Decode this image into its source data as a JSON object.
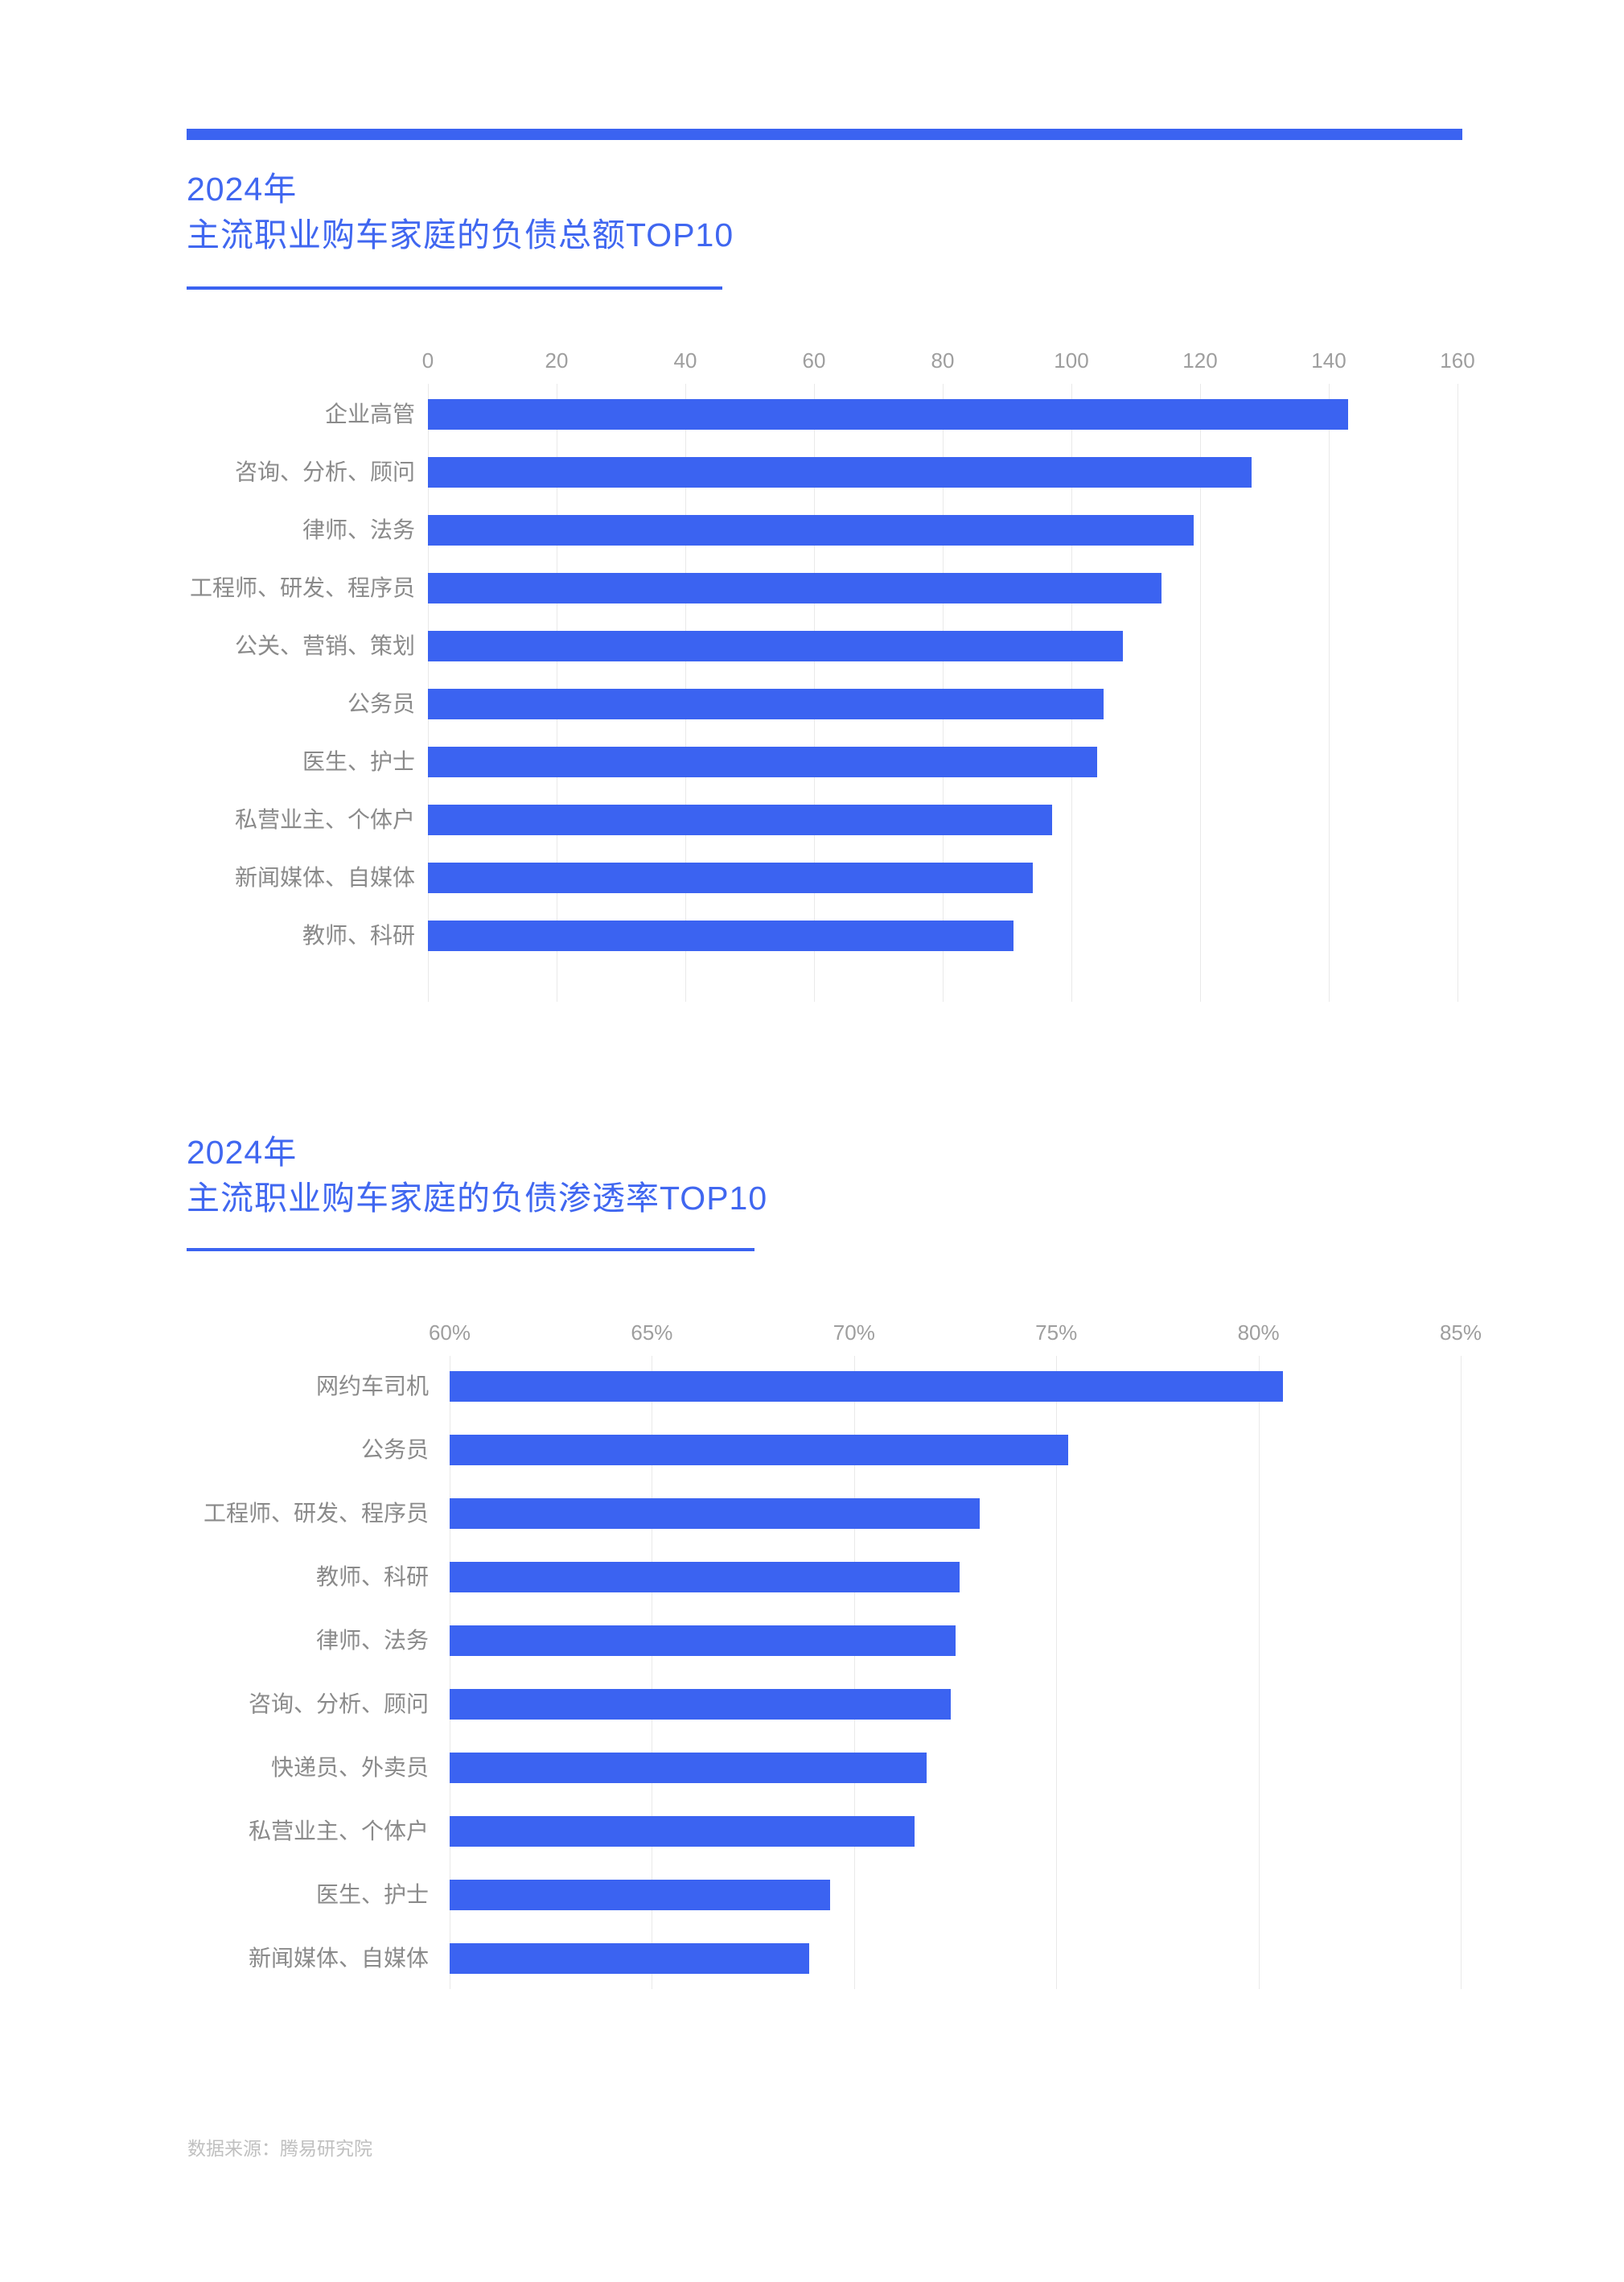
{
  "colors": {
    "accent": "#3b63f1",
    "title_text": "#4067f0",
    "axis_label": "#9e9e9e",
    "category_label": "#8a8a8a",
    "gridline": "#e9e9e9",
    "footer_text": "#c0c0c0",
    "background": "#ffffff"
  },
  "chart_data": [
    {
      "type": "bar",
      "orientation": "horizontal",
      "title_line1": "2024年",
      "title_line2": "主流职业购车家庭的负债总额TOP10",
      "categories": [
        "企业高管",
        "咨询、分析、顾问",
        "律师、法务",
        "工程师、研发、程序员",
        "公关、营销、策划",
        "公务员",
        "医生、护士",
        "私营业主、个体户",
        "新闻媒体、自媒体",
        "教师、科研"
      ],
      "values": [
        143,
        128,
        119,
        114,
        108,
        105,
        104,
        97,
        94,
        91
      ],
      "xlim": [
        0,
        160
      ],
      "ticks": [
        "0",
        "20",
        "40",
        "60",
        "80",
        "100",
        "120",
        "140",
        "160"
      ],
      "grid": true,
      "legend": "none",
      "bar_color": "#3b63f1"
    },
    {
      "type": "bar",
      "orientation": "horizontal",
      "title_line1": "2024年",
      "title_line2": "主流职业购车家庭的负债渗透率TOP10",
      "categories": [
        "网约车司机",
        "公务员",
        "工程师、研发、程序员",
        "教师、科研",
        "律师、法务",
        "咨询、分析、顾问",
        "快递员、外卖员",
        "私营业主、个体户",
        "医生、护士",
        "新闻媒体、自媒体"
      ],
      "values": [
        80.6,
        75.3,
        73.1,
        72.6,
        72.5,
        72.4,
        71.8,
        71.5,
        69.4,
        68.9
      ],
      "value_suffix": "%",
      "xlim": [
        60,
        85
      ],
      "ticks": [
        "60%",
        "65%",
        "70%",
        "75%",
        "80%",
        "85%"
      ],
      "grid": true,
      "legend": "none",
      "bar_color": "#3b63f1"
    }
  ],
  "footer": {
    "source": "数据来源：腾易研究院"
  }
}
